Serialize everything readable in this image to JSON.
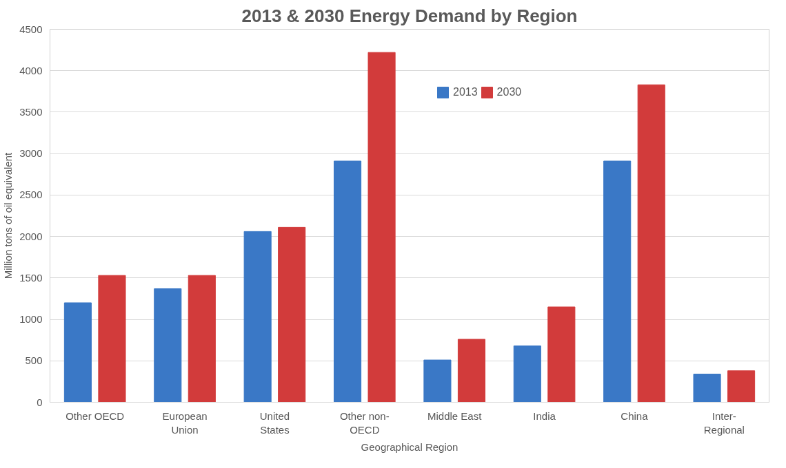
{
  "chart_data": {
    "type": "bar",
    "title": "2013 & 2030 Energy Demand by Region",
    "xlabel": "Geographical Region",
    "ylabel": "Million tons of oil equivalent",
    "categories": [
      "Other OECD",
      "European Union",
      "United States",
      "Other non-OECD",
      "Middle East",
      "India",
      "China",
      "Inter-Regional"
    ],
    "series": [
      {
        "name": "2013",
        "color": "#3a78c6",
        "values": [
          1200,
          1370,
          2060,
          2910,
          510,
          680,
          2910,
          340
        ]
      },
      {
        "name": "2030",
        "color": "#d23b3b",
        "values": [
          1530,
          1530,
          2110,
          4220,
          760,
          1150,
          3830,
          380
        ]
      }
    ],
    "ylim": [
      0,
      4500
    ],
    "yticks": [
      0,
      500,
      1000,
      1500,
      2000,
      2500,
      3000,
      3500,
      4000,
      4500
    ],
    "grid": "y",
    "legend": "top"
  }
}
